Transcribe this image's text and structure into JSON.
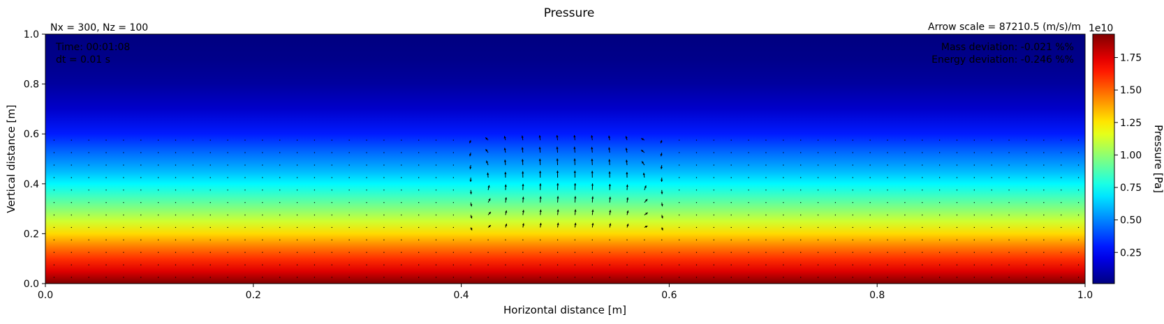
{
  "chart_data": {
    "type": "heatmap",
    "title": "Pressure",
    "xlabel": "Horizontal distance [m]",
    "ylabel": "Vertical distance [m]",
    "xlim": [
      0.0,
      1.0
    ],
    "ylim": [
      0.0,
      1.0
    ],
    "x_ticks": [
      "0.0",
      "0.2",
      "0.4",
      "0.6",
      "0.8",
      "1.0"
    ],
    "y_ticks": [
      "0.0",
      "0.2",
      "0.4",
      "0.6",
      "0.8",
      "1.0"
    ],
    "grid": "off",
    "colormap": "jet",
    "field_description": "pressure decreases with height; vertical profile",
    "pressure_profile": [
      {
        "z": 0.0,
        "p": 19300000000.0
      },
      {
        "z": 0.05,
        "p": 17500000000.0
      },
      {
        "z": 0.1,
        "p": 16000000000.0
      },
      {
        "z": 0.15,
        "p": 14500000000.0
      },
      {
        "z": 0.2,
        "p": 12800000000.0
      },
      {
        "z": 0.25,
        "p": 11200000000.0
      },
      {
        "z": 0.3,
        "p": 9800000000.0
      },
      {
        "z": 0.35,
        "p": 8500000000.0
      },
      {
        "z": 0.4,
        "p": 7200000000.0
      },
      {
        "z": 0.45,
        "p": 6000000000.0
      },
      {
        "z": 0.5,
        "p": 5000000000.0
      },
      {
        "z": 0.55,
        "p": 4000000000.0
      },
      {
        "z": 0.6,
        "p": 3000000000.0
      },
      {
        "z": 0.7,
        "p": 1500000000.0
      },
      {
        "z": 0.8,
        "p": 700000000.0
      },
      {
        "z": 0.9,
        "p": 300000000.0
      },
      {
        "z": 1.0,
        "p": 100000000.0
      }
    ],
    "colorbar": {
      "label": "Pressure [Pa]",
      "multiplier": "1e10",
      "range": [
        100000000.0,
        19300000000.0
      ],
      "ticks": [
        {
          "value": 0.25,
          "label": "0.25"
        },
        {
          "value": 0.5,
          "label": "0.50"
        },
        {
          "value": 0.75,
          "label": "0.75"
        },
        {
          "value": 1.0,
          "label": "1.00"
        },
        {
          "value": 1.25,
          "label": "1.25"
        },
        {
          "value": 1.5,
          "label": "1.50"
        },
        {
          "value": 1.75,
          "label": "1.75"
        }
      ]
    },
    "annotations": {
      "grid_size": "Nx = 300, Nz = 100",
      "arrow_scale": "Arrow scale = 87210.5 (m/s)/m",
      "time": "Time: 00:01:08",
      "dt": "dt = 0.01 s",
      "mass_deviation": "Mass deviation: -0.021 %%",
      "energy_deviation": "Energy deviation: -0.246 %%"
    },
    "velocity_field": {
      "grid_x_step": 0.0167,
      "grid_z_step": 0.05,
      "vortex_center": [
        0.5,
        0.41
      ],
      "vortex_extent_x": [
        0.4,
        0.6
      ],
      "vortex_extent_z": [
        0.2,
        0.61
      ]
    }
  }
}
